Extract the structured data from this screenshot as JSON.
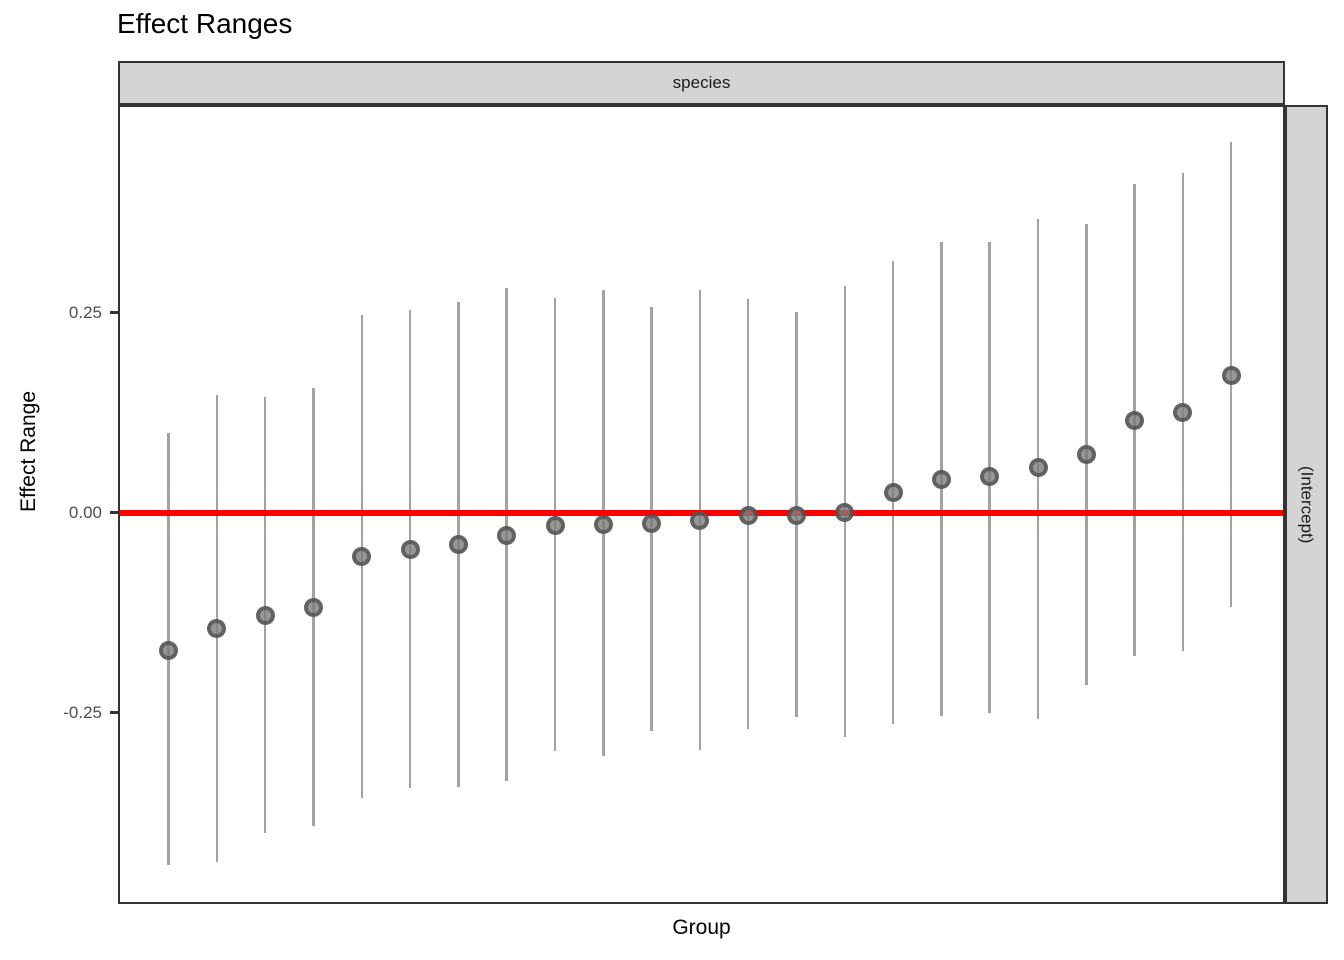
{
  "title": "Effect Ranges",
  "facet": {
    "top_label": "species",
    "right_label": "(Intercept)"
  },
  "axes": {
    "x_title": "Group",
    "y_title": "Effect Range",
    "y_tick_labels": [
      "0.25",
      "0.00",
      "-0.25"
    ]
  },
  "colors": {
    "reference_line": "#FF0000",
    "errorbar": "#A2A2A2",
    "point": "#7D7D7D",
    "strip_fill": "#D4D4D4",
    "panel_border": "#333333",
    "tick_text": "#4D4D4D"
  },
  "chart_data": {
    "type": "scatter",
    "subtype": "caterpillar-interval-plot",
    "title": "Effect Ranges",
    "xlabel": "Group",
    "ylabel": "Effect Range",
    "facet_top": "species",
    "facet_right": "(Intercept)",
    "ylim": [
      -0.49,
      0.51
    ],
    "y_ticks": [
      0.25,
      0.0,
      -0.25
    ],
    "x_tick_labels_hidden": true,
    "grid": "off",
    "legend": "none",
    "reference_line_y": 0.0,
    "n_groups": 23,
    "points": [
      {
        "estimate": -0.172,
        "lo": -0.44,
        "hi": 0.1
      },
      {
        "estimate": -0.145,
        "lo": -0.437,
        "hi": 0.147
      },
      {
        "estimate": -0.128,
        "lo": -0.401,
        "hi": 0.145
      },
      {
        "estimate": -0.118,
        "lo": -0.392,
        "hi": 0.156
      },
      {
        "estimate": -0.055,
        "lo": -0.357,
        "hi": 0.247
      },
      {
        "estimate": -0.046,
        "lo": -0.344,
        "hi": 0.253
      },
      {
        "estimate": -0.04,
        "lo": -0.343,
        "hi": 0.264
      },
      {
        "estimate": -0.028,
        "lo": -0.335,
        "hi": 0.281
      },
      {
        "estimate": -0.016,
        "lo": -0.298,
        "hi": 0.269
      },
      {
        "estimate": -0.015,
        "lo": -0.304,
        "hi": 0.278
      },
      {
        "estimate": -0.013,
        "lo": -0.273,
        "hi": 0.257
      },
      {
        "estimate": -0.01,
        "lo": -0.297,
        "hi": 0.278
      },
      {
        "estimate": -0.004,
        "lo": -0.271,
        "hi": 0.267
      },
      {
        "estimate": -0.003,
        "lo": -0.256,
        "hi": 0.251
      },
      {
        "estimate": 0.0,
        "lo": -0.281,
        "hi": 0.283
      },
      {
        "estimate": 0.025,
        "lo": -0.264,
        "hi": 0.315
      },
      {
        "estimate": 0.042,
        "lo": -0.254,
        "hi": 0.339
      },
      {
        "estimate": 0.045,
        "lo": -0.25,
        "hi": 0.339
      },
      {
        "estimate": 0.056,
        "lo": -0.258,
        "hi": 0.367
      },
      {
        "estimate": 0.073,
        "lo": -0.216,
        "hi": 0.361
      },
      {
        "estimate": 0.115,
        "lo": -0.179,
        "hi": 0.411
      },
      {
        "estimate": 0.125,
        "lo": -0.173,
        "hi": 0.425
      },
      {
        "estimate": 0.172,
        "lo": -0.118,
        "hi": 0.463
      }
    ]
  }
}
